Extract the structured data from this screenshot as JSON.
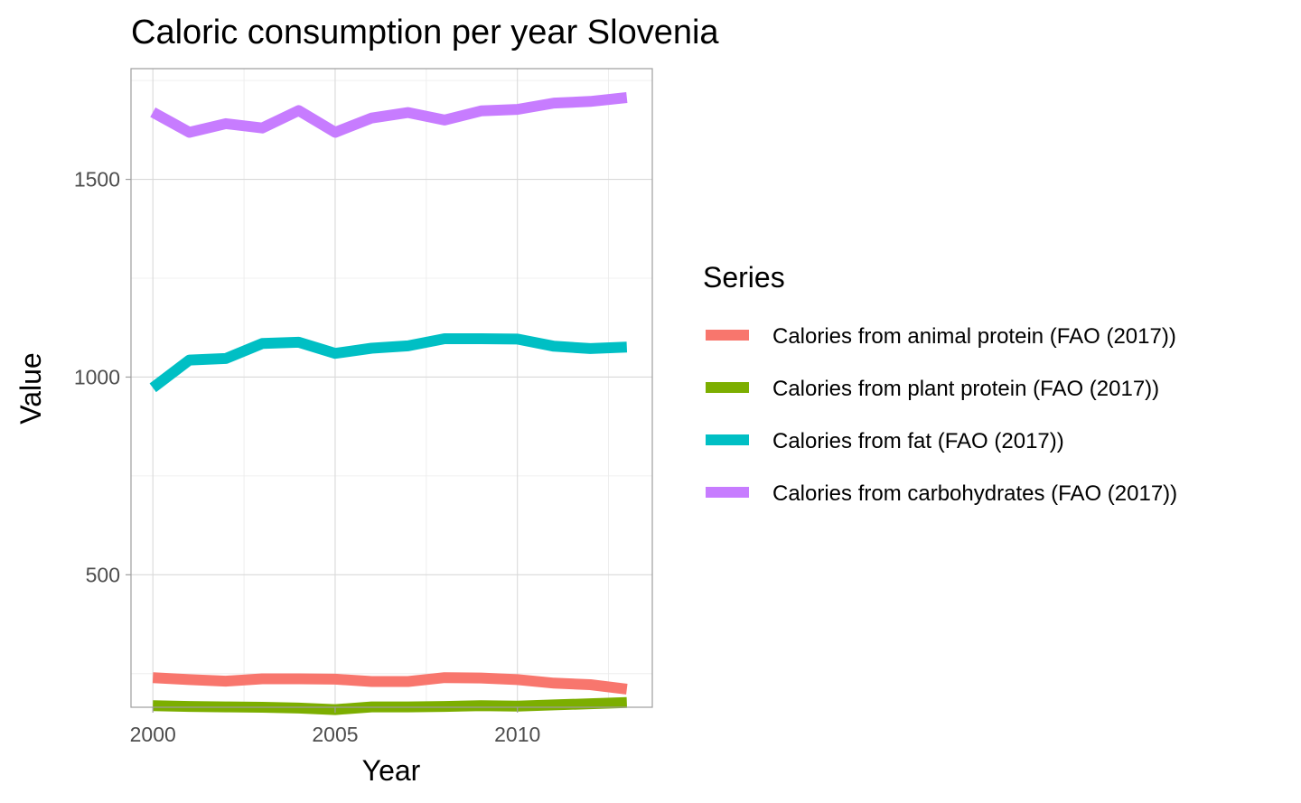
{
  "chart_data": {
    "type": "line",
    "title": "Caloric consumption per year Slovenia",
    "xlabel": "Year",
    "ylabel": "Value",
    "x": [
      2000,
      2001,
      2002,
      2003,
      2004,
      2005,
      2006,
      2007,
      2008,
      2009,
      2010,
      2011,
      2012,
      2013
    ],
    "xlim": [
      1999.4,
      2013.7
    ],
    "ylim": [
      165,
      1780
    ],
    "x_ticks": [
      "2000",
      "2005",
      "2010"
    ],
    "y_ticks": [
      "500",
      "1000",
      "1500"
    ],
    "grid": true,
    "legend": {
      "title": "Series",
      "position": "right"
    },
    "series": [
      {
        "name": "Calories from animal protein (FAO (2017))",
        "color": "#f8766d",
        "values": [
          240,
          235,
          231,
          237,
          237,
          236,
          230,
          230,
          240,
          239,
          235,
          226,
          222,
          211
        ]
      },
      {
        "name": "Calories from plant protein (FAO (2017))",
        "color": "#7cae00",
        "values": [
          169,
          167,
          166,
          165,
          163,
          159,
          166,
          166,
          167,
          169,
          168,
          171,
          174,
          177
        ]
      },
      {
        "name": "Calories from fat (FAO (2017))",
        "color": "#00bfc4",
        "values": [
          973,
          1043,
          1047,
          1085,
          1088,
          1060,
          1073,
          1079,
          1097,
          1097,
          1096,
          1078,
          1072,
          1076
        ]
      },
      {
        "name": "Calories from carbohydrates (FAO (2017))",
        "color": "#c77cff",
        "values": [
          1670,
          1619,
          1641,
          1630,
          1674,
          1619,
          1655,
          1669,
          1650,
          1673,
          1677,
          1693,
          1697,
          1707
        ]
      }
    ]
  }
}
